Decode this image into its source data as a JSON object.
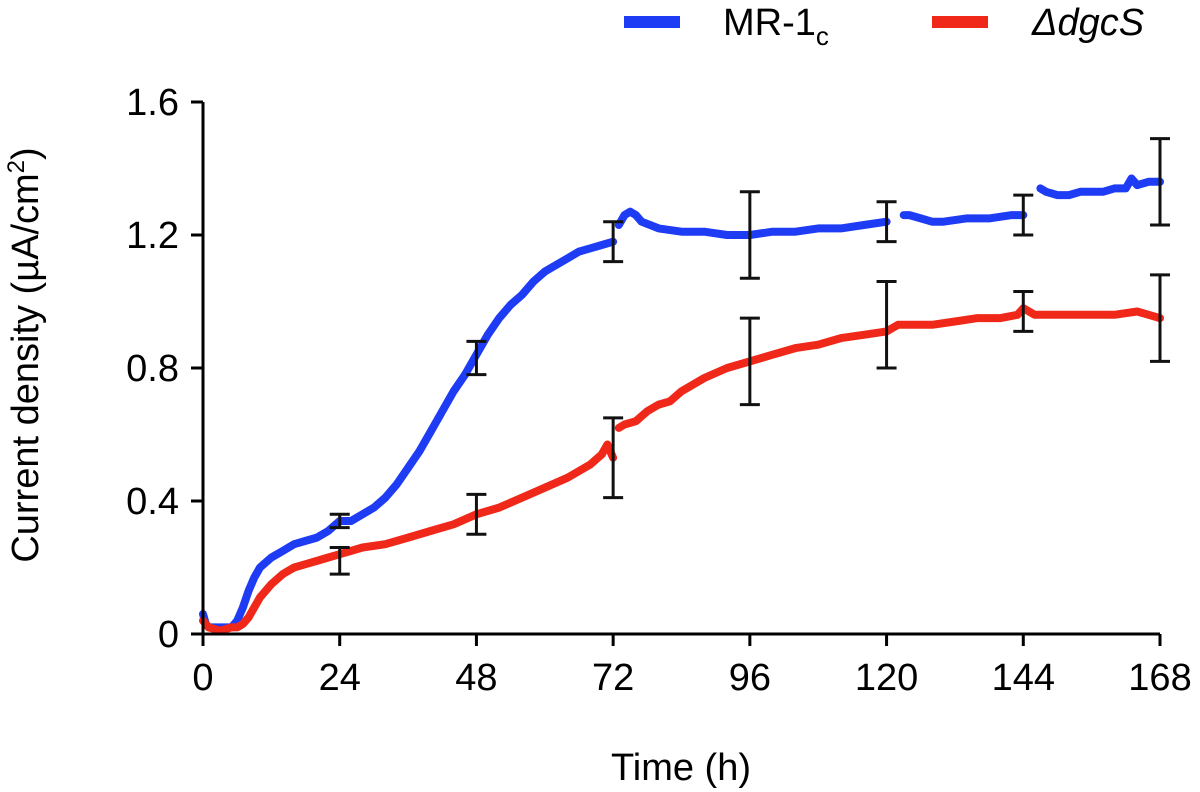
{
  "chart_data": {
    "type": "line",
    "title": "",
    "xlabel": "Time (h)",
    "ylabel_parts": {
      "base": "Current density (µA/cm",
      "sup": "2",
      "end": ")"
    },
    "xlim": [
      0,
      168
    ],
    "ylim": [
      0,
      1.6
    ],
    "xticks": [
      0,
      24,
      48,
      72,
      96,
      120,
      144,
      168
    ],
    "xtick_labels": [
      "0",
      "24",
      "48",
      "72",
      "96",
      "120",
      "144",
      "168"
    ],
    "yticks": [
      0,
      0.4,
      0.8,
      1.2,
      1.6
    ],
    "ytick_labels": [
      "0",
      "0.4",
      "0.8",
      "1.2",
      "1.6"
    ],
    "grid": false,
    "legend_position": "top-right",
    "series": [
      {
        "name": "MR-1",
        "name_sub": "c",
        "color": "#1f3cf5",
        "segments": [
          [
            [
              0,
              0.06
            ],
            [
              0.5,
              0.03
            ],
            [
              1,
              0.02
            ],
            [
              3,
              0.02
            ],
            [
              5,
              0.02
            ],
            [
              6,
              0.04
            ],
            [
              7,
              0.08
            ],
            [
              8,
              0.13
            ],
            [
              9,
              0.17
            ],
            [
              10,
              0.2
            ],
            [
              12,
              0.23
            ],
            [
              14,
              0.25
            ],
            [
              16,
              0.27
            ],
            [
              18,
              0.28
            ],
            [
              20,
              0.29
            ],
            [
              22,
              0.31
            ],
            [
              24,
              0.34
            ],
            [
              26,
              0.34
            ],
            [
              28,
              0.36
            ],
            [
              30,
              0.38
            ],
            [
              32,
              0.41
            ],
            [
              34,
              0.45
            ],
            [
              36,
              0.5
            ],
            [
              38,
              0.55
            ],
            [
              40,
              0.61
            ],
            [
              42,
              0.67
            ],
            [
              44,
              0.73
            ],
            [
              46,
              0.78
            ],
            [
              48,
              0.84
            ],
            [
              50,
              0.9
            ],
            [
              52,
              0.95
            ],
            [
              54,
              0.99
            ],
            [
              56,
              1.02
            ],
            [
              58,
              1.06
            ],
            [
              60,
              1.09
            ],
            [
              62,
              1.11
            ],
            [
              64,
              1.13
            ],
            [
              66,
              1.15
            ],
            [
              68,
              1.16
            ],
            [
              70,
              1.17
            ],
            [
              72,
              1.18
            ]
          ],
          [
            [
              73,
              1.23
            ],
            [
              74,
              1.26
            ],
            [
              75,
              1.27
            ],
            [
              76,
              1.26
            ],
            [
              77,
              1.24
            ],
            [
              80,
              1.22
            ],
            [
              84,
              1.21
            ],
            [
              88,
              1.21
            ],
            [
              92,
              1.2
            ],
            [
              96,
              1.2
            ],
            [
              100,
              1.21
            ],
            [
              104,
              1.21
            ],
            [
              108,
              1.22
            ],
            [
              112,
              1.22
            ],
            [
              116,
              1.23
            ],
            [
              120,
              1.24
            ]
          ],
          [
            [
              123,
              1.26
            ],
            [
              124,
              1.26
            ],
            [
              126,
              1.25
            ],
            [
              128,
              1.24
            ],
            [
              130,
              1.24
            ],
            [
              134,
              1.25
            ],
            [
              138,
              1.25
            ],
            [
              142,
              1.26
            ],
            [
              144,
              1.26
            ]
          ],
          [
            [
              147,
              1.34
            ],
            [
              148,
              1.33
            ],
            [
              150,
              1.32
            ],
            [
              152,
              1.32
            ],
            [
              154,
              1.33
            ],
            [
              156,
              1.33
            ],
            [
              158,
              1.33
            ],
            [
              160,
              1.34
            ],
            [
              162,
              1.34
            ],
            [
              163,
              1.37
            ],
            [
              164,
              1.35
            ],
            [
              166,
              1.36
            ],
            [
              168,
              1.36
            ]
          ]
        ],
        "error_bars": [
          {
            "x": 24,
            "y": 0.34,
            "err": 0.02
          },
          {
            "x": 48,
            "y": 0.83,
            "err": 0.05
          },
          {
            "x": 72,
            "y": 1.18,
            "err": 0.06
          },
          {
            "x": 96,
            "y": 1.2,
            "err": 0.13
          },
          {
            "x": 120,
            "y": 1.24,
            "err": 0.06
          },
          {
            "x": 144,
            "y": 1.26,
            "err": 0.06
          },
          {
            "x": 168,
            "y": 1.36,
            "err": 0.13
          }
        ]
      },
      {
        "name": "ΔdgcS",
        "color": "#f0281a",
        "segments": [
          [
            [
              0,
              0.04
            ],
            [
              1,
              0.02
            ],
            [
              3,
              0.01
            ],
            [
              5,
              0.02
            ],
            [
              6,
              0.02
            ],
            [
              7,
              0.03
            ],
            [
              8,
              0.05
            ],
            [
              9,
              0.08
            ],
            [
              10,
              0.11
            ],
            [
              12,
              0.15
            ],
            [
              14,
              0.18
            ],
            [
              16,
              0.2
            ],
            [
              18,
              0.21
            ],
            [
              20,
              0.22
            ],
            [
              22,
              0.23
            ],
            [
              24,
              0.24
            ],
            [
              26,
              0.25
            ],
            [
              28,
              0.26
            ],
            [
              32,
              0.27
            ],
            [
              36,
              0.29
            ],
            [
              40,
              0.31
            ],
            [
              44,
              0.33
            ],
            [
              48,
              0.36
            ],
            [
              52,
              0.38
            ],
            [
              56,
              0.41
            ],
            [
              60,
              0.44
            ],
            [
              64,
              0.47
            ],
            [
              68,
              0.51
            ],
            [
              70,
              0.54
            ],
            [
              71,
              0.57
            ],
            [
              72,
              0.53
            ]
          ],
          [
            [
              73,
              0.62
            ],
            [
              74,
              0.63
            ],
            [
              76,
              0.64
            ],
            [
              78,
              0.67
            ],
            [
              80,
              0.69
            ],
            [
              82,
              0.7
            ],
            [
              84,
              0.73
            ],
            [
              88,
              0.77
            ],
            [
              92,
              0.8
            ],
            [
              96,
              0.82
            ],
            [
              100,
              0.84
            ],
            [
              104,
              0.86
            ],
            [
              108,
              0.87
            ],
            [
              112,
              0.89
            ],
            [
              116,
              0.9
            ],
            [
              120,
              0.91
            ],
            [
              122,
              0.93
            ],
            [
              124,
              0.93
            ],
            [
              128,
              0.93
            ],
            [
              132,
              0.94
            ],
            [
              136,
              0.95
            ],
            [
              140,
              0.95
            ],
            [
              143,
              0.96
            ],
            [
              144,
              0.98
            ],
            [
              145,
              0.97
            ],
            [
              146,
              0.96
            ],
            [
              148,
              0.96
            ],
            [
              150,
              0.96
            ],
            [
              152,
              0.96
            ],
            [
              156,
              0.96
            ],
            [
              160,
              0.96
            ],
            [
              164,
              0.97
            ],
            [
              166,
              0.96
            ],
            [
              168,
              0.95
            ]
          ]
        ],
        "error_bars": [
          {
            "x": 24,
            "y": 0.22,
            "err": 0.04
          },
          {
            "x": 48,
            "y": 0.36,
            "err": 0.06
          },
          {
            "x": 72,
            "y": 0.53,
            "err": 0.12
          },
          {
            "x": 96,
            "y": 0.82,
            "err": 0.13
          },
          {
            "x": 120,
            "y": 0.93,
            "err": 0.13
          },
          {
            "x": 144,
            "y": 0.97,
            "err": 0.06
          },
          {
            "x": 168,
            "y": 0.95,
            "err": 0.13
          }
        ]
      }
    ]
  }
}
